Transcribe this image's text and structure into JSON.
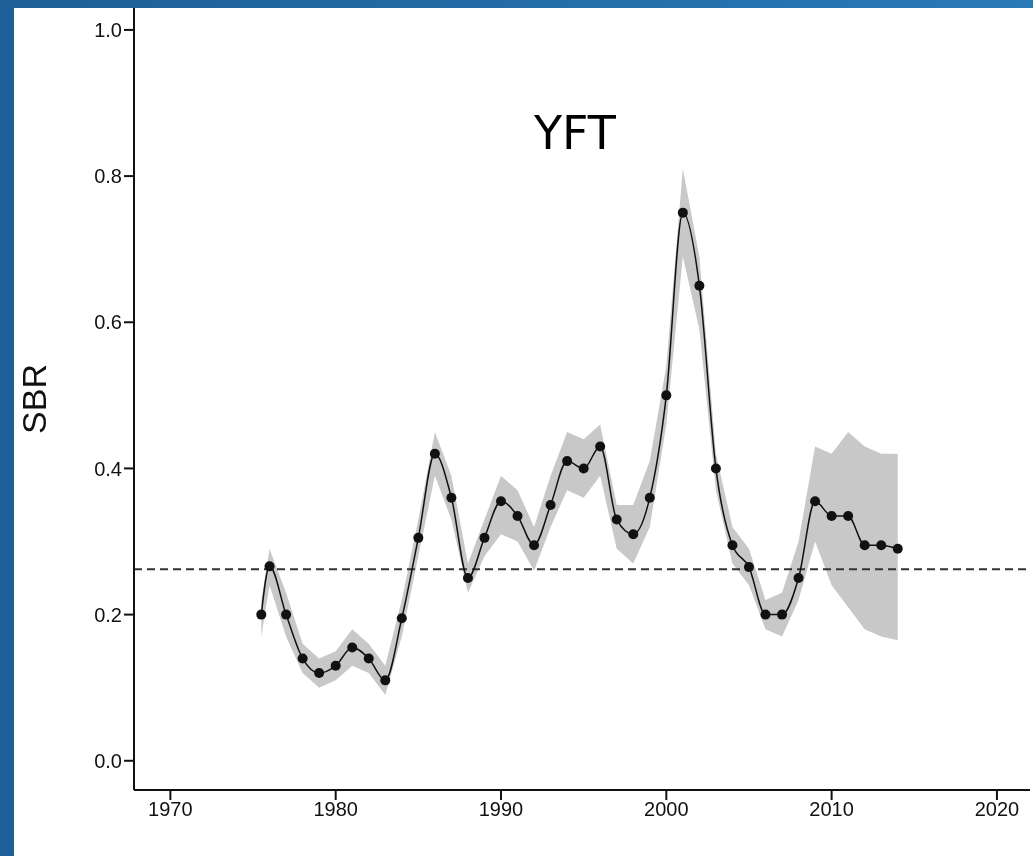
{
  "chart_data": {
    "type": "line",
    "title": "YFT",
    "ylabel": "SBR",
    "x": [
      1975.5,
      1976,
      1977,
      1978,
      1979,
      1980,
      1981,
      1982,
      1983,
      1984,
      1985,
      1986,
      1987,
      1988,
      1989,
      1990,
      1991,
      1992,
      1993,
      1994,
      1995,
      1996,
      1997,
      1998,
      1999,
      2000,
      2001,
      2002,
      2003,
      2004,
      2005,
      2006,
      2007,
      2008,
      2009,
      2010,
      2011,
      2012,
      2013,
      2014
    ],
    "series": [
      {
        "color": "#111111",
        "values": [
          0.2,
          0.266,
          0.2,
          0.14,
          0.12,
          0.13,
          0.155,
          0.14,
          0.11,
          0.195,
          0.305,
          0.42,
          0.36,
          0.25,
          0.305,
          0.355,
          0.335,
          0.295,
          0.35,
          0.41,
          0.4,
          0.43,
          0.33,
          0.31,
          0.36,
          0.5,
          0.75,
          0.65,
          0.4,
          0.295,
          0.265,
          0.2,
          0.2,
          0.25,
          0.355,
          0.335,
          0.335,
          0.295,
          0.295,
          0.29
        ],
        "lower": [
          0.17,
          0.24,
          0.17,
          0.12,
          0.1,
          0.11,
          0.13,
          0.12,
          0.09,
          0.17,
          0.28,
          0.39,
          0.33,
          0.23,
          0.28,
          0.31,
          0.3,
          0.26,
          0.32,
          0.37,
          0.36,
          0.39,
          0.29,
          0.27,
          0.32,
          0.46,
          0.69,
          0.59,
          0.37,
          0.27,
          0.24,
          0.18,
          0.17,
          0.22,
          0.3,
          0.24,
          0.21,
          0.18,
          0.17,
          0.165
        ],
        "upper": [
          0.22,
          0.29,
          0.23,
          0.16,
          0.14,
          0.15,
          0.18,
          0.16,
          0.13,
          0.22,
          0.33,
          0.45,
          0.39,
          0.27,
          0.33,
          0.39,
          0.37,
          0.32,
          0.39,
          0.45,
          0.44,
          0.46,
          0.35,
          0.35,
          0.41,
          0.54,
          0.81,
          0.69,
          0.42,
          0.32,
          0.29,
          0.22,
          0.23,
          0.3,
          0.43,
          0.42,
          0.45,
          0.43,
          0.42,
          0.42
        ]
      }
    ],
    "xlim": [
      1967.8,
      2022
    ],
    "xticks": [
      1970,
      1980,
      1990,
      2000,
      2010,
      2020
    ],
    "ylim": [
      -0.04,
      1.03
    ],
    "yticks": [
      {
        "value": 0,
        "label": "0.0"
      },
      {
        "value": 0.2,
        "label": "0.2"
      },
      {
        "value": 0.4,
        "label": "0.4"
      },
      {
        "value": 0.6,
        "label": "0.6"
      },
      {
        "value": 0.8,
        "label": "0.8"
      },
      {
        "value": 1,
        "label": "1.0"
      }
    ],
    "ref_lines": [
      {
        "axis": "y",
        "value": 0.262,
        "color": "#333333",
        "line_style": "dashed"
      }
    ],
    "marker": "circle",
    "line_style": "solid",
    "grid": false,
    "legend": false
  }
}
